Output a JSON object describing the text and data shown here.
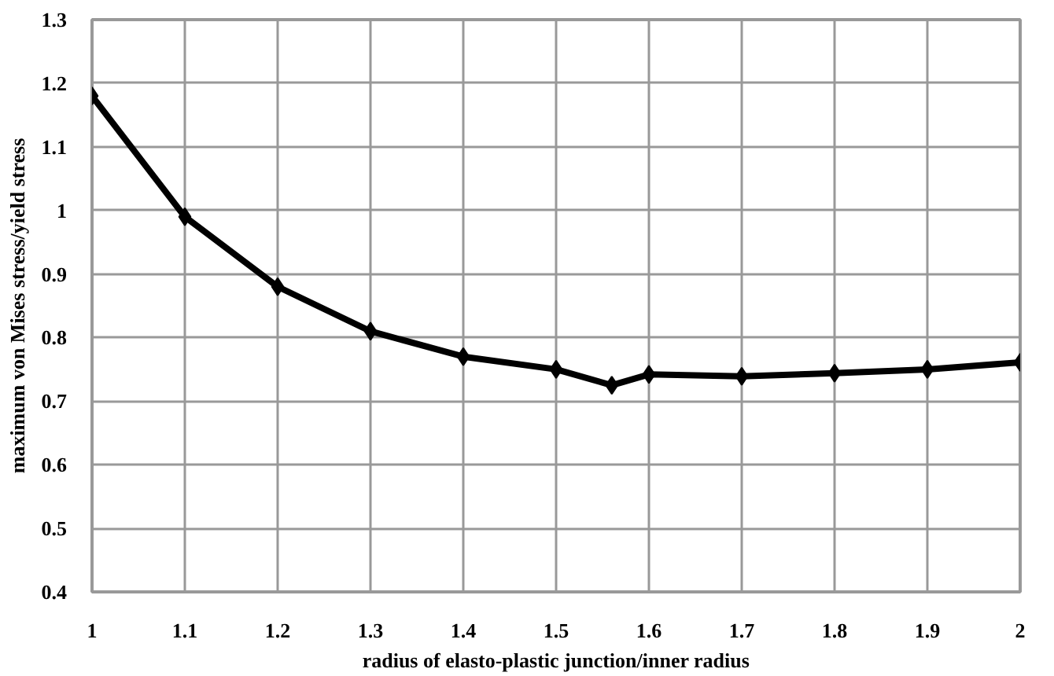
{
  "chart_data": {
    "type": "line",
    "xlabel": "radius of elasto-plastic junction/inner radius",
    "ylabel": "maximum von Mises stress/yield stress",
    "x": [
      1,
      1.1,
      1.2,
      1.3,
      1.4,
      1.5,
      1.56,
      1.6,
      1.7,
      1.8,
      1.9,
      2
    ],
    "series": [
      {
        "color": "#000000",
        "values": [
          1.18,
          0.99,
          0.88,
          0.81,
          0.77,
          0.75,
          0.725,
          0.742,
          0.739,
          0.744,
          0.75,
          0.761
        ]
      }
    ],
    "xlim": [
      1,
      2
    ],
    "xticks": [
      1,
      1.1,
      1.2,
      1.3,
      1.4,
      1.5,
      1.6,
      1.7,
      1.8,
      1.9,
      2
    ],
    "ylim": [
      0.4,
      1.3
    ],
    "yticks": [
      0.4,
      0.5,
      0.6,
      0.7,
      0.8,
      0.9,
      1,
      1.1,
      1.2,
      1.3
    ],
    "grid": true,
    "marker": "diamond",
    "line_style": "solid"
  }
}
